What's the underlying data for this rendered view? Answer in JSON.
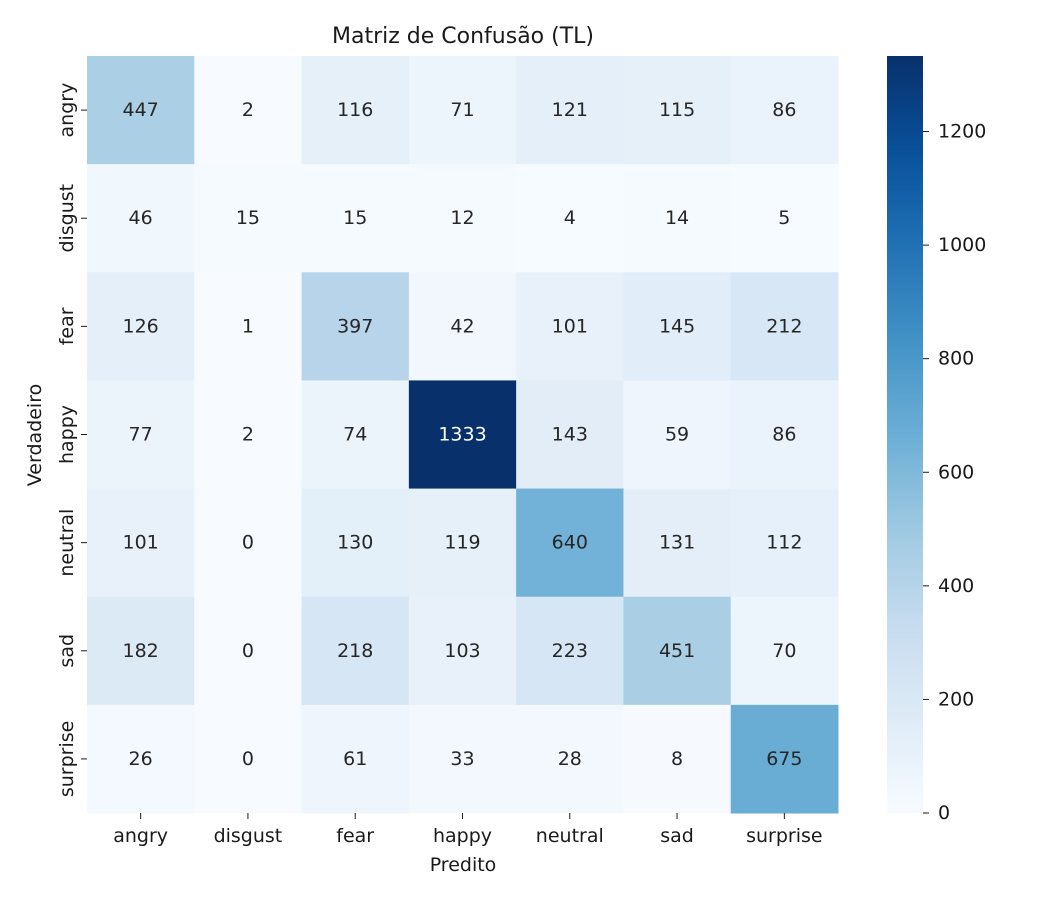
{
  "chart_data": {
    "type": "heatmap",
    "title": "Matriz de Confusão (TL)",
    "xlabel": "Predito",
    "ylabel": "Verdadeiro",
    "x_categories": [
      "angry",
      "disgust",
      "fear",
      "happy",
      "neutral",
      "sad",
      "surprise"
    ],
    "y_categories": [
      "angry",
      "disgust",
      "fear",
      "happy",
      "neutral",
      "sad",
      "surprise"
    ],
    "values": [
      [
        447,
        2,
        116,
        71,
        121,
        115,
        86
      ],
      [
        46,
        15,
        15,
        12,
        4,
        14,
        5
      ],
      [
        126,
        1,
        397,
        42,
        101,
        145,
        212
      ],
      [
        77,
        2,
        74,
        1333,
        143,
        59,
        86
      ],
      [
        101,
        0,
        130,
        119,
        640,
        131,
        112
      ],
      [
        182,
        0,
        218,
        103,
        223,
        451,
        70
      ],
      [
        26,
        0,
        61,
        33,
        28,
        8,
        675
      ]
    ],
    "colormap": "Blues",
    "color_range": [
      0,
      1333
    ],
    "colorbar_ticks": [
      0,
      200,
      400,
      600,
      800,
      1000,
      1200
    ],
    "grid": false,
    "legend": "colorbar-right"
  }
}
